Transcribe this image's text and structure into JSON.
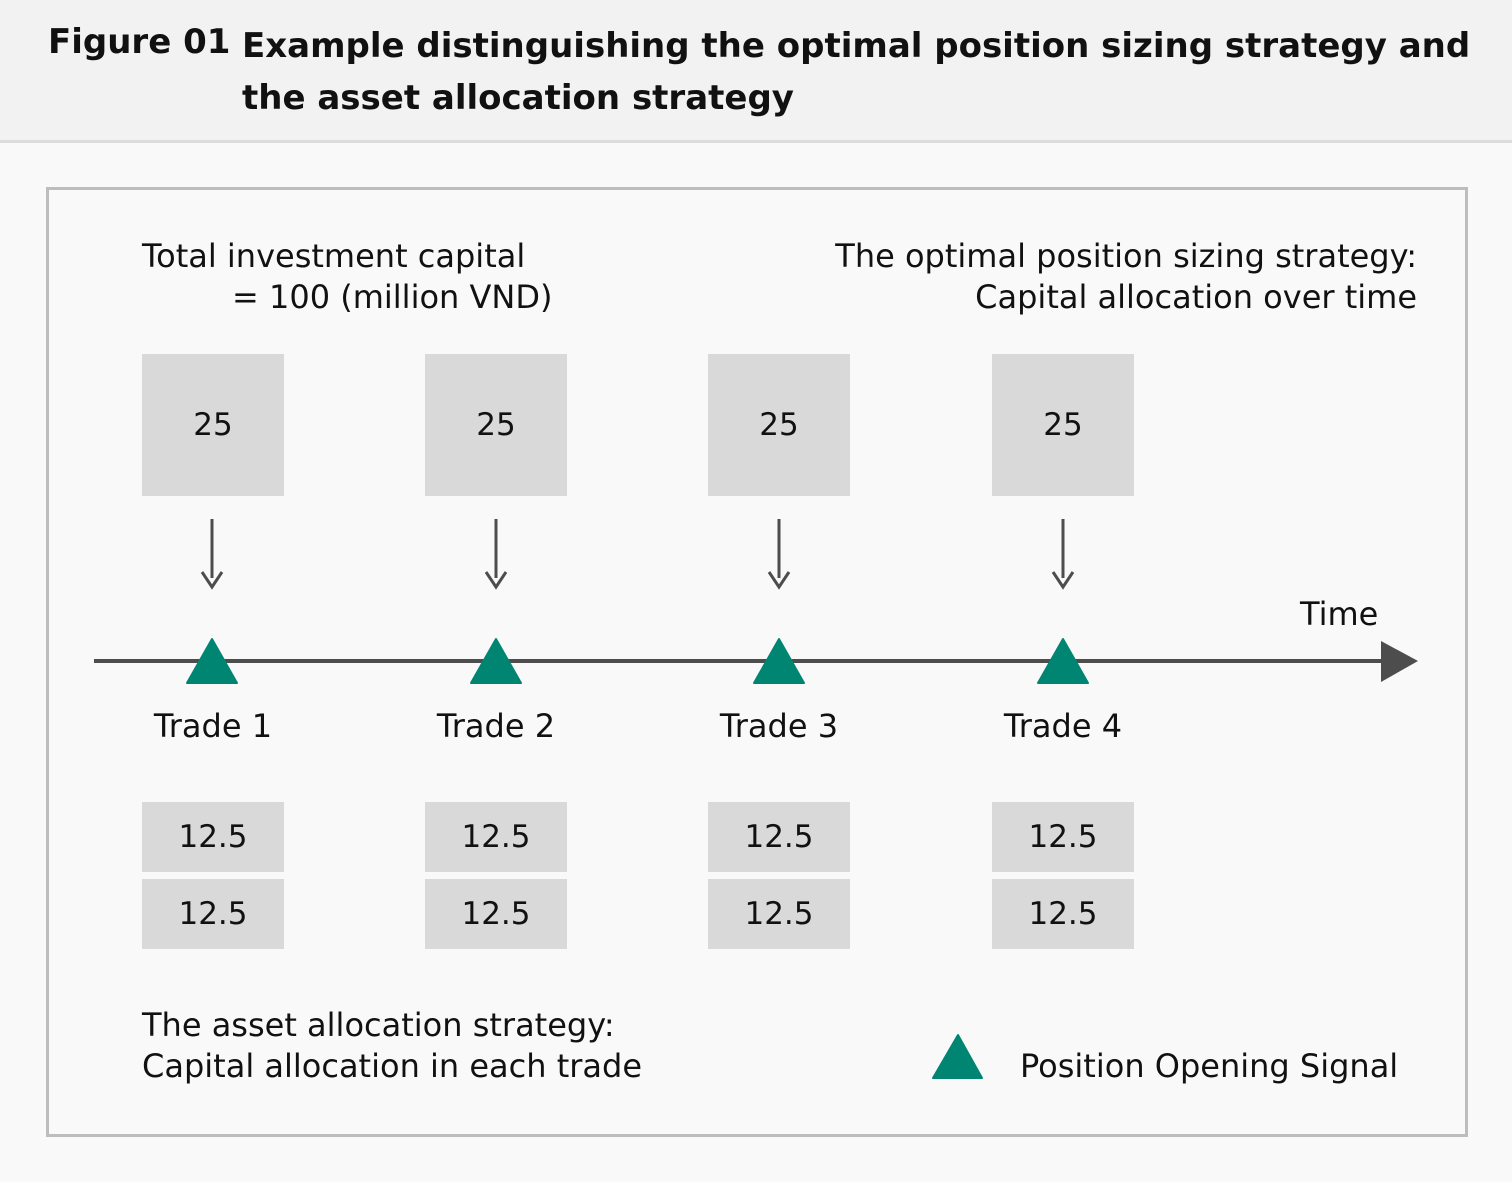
{
  "header": {
    "figure_number": "Figure 01",
    "title": "Example distinguishing the optimal position sizing strategy and the asset allocation strategy"
  },
  "diagram": {
    "total_capital_line1": "Total investment capital",
    "total_capital_line2": "= 100 (million VND)",
    "optimal_strategy_line1": "The optimal position sizing strategy:",
    "optimal_strategy_line2": "Capital allocation over time",
    "asset_strategy_line1": "The asset allocation strategy:",
    "asset_strategy_line2": "Capital allocation in each trade",
    "time_label": "Time",
    "legend_label": "Position Opening Signal",
    "colors": {
      "signal": "#008573",
      "box_fill": "#d9d9d9",
      "axis": "#4d4d4d"
    },
    "trades": [
      {
        "label": "Trade 1",
        "allocation": "25",
        "splits": [
          "12.5",
          "12.5"
        ]
      },
      {
        "label": "Trade 2",
        "allocation": "25",
        "splits": [
          "12.5",
          "12.5"
        ]
      },
      {
        "label": "Trade 3",
        "allocation": "25",
        "splits": [
          "12.5",
          "12.5"
        ]
      },
      {
        "label": "Trade 4",
        "allocation": "25",
        "splits": [
          "12.5",
          "12.5"
        ]
      }
    ]
  }
}
